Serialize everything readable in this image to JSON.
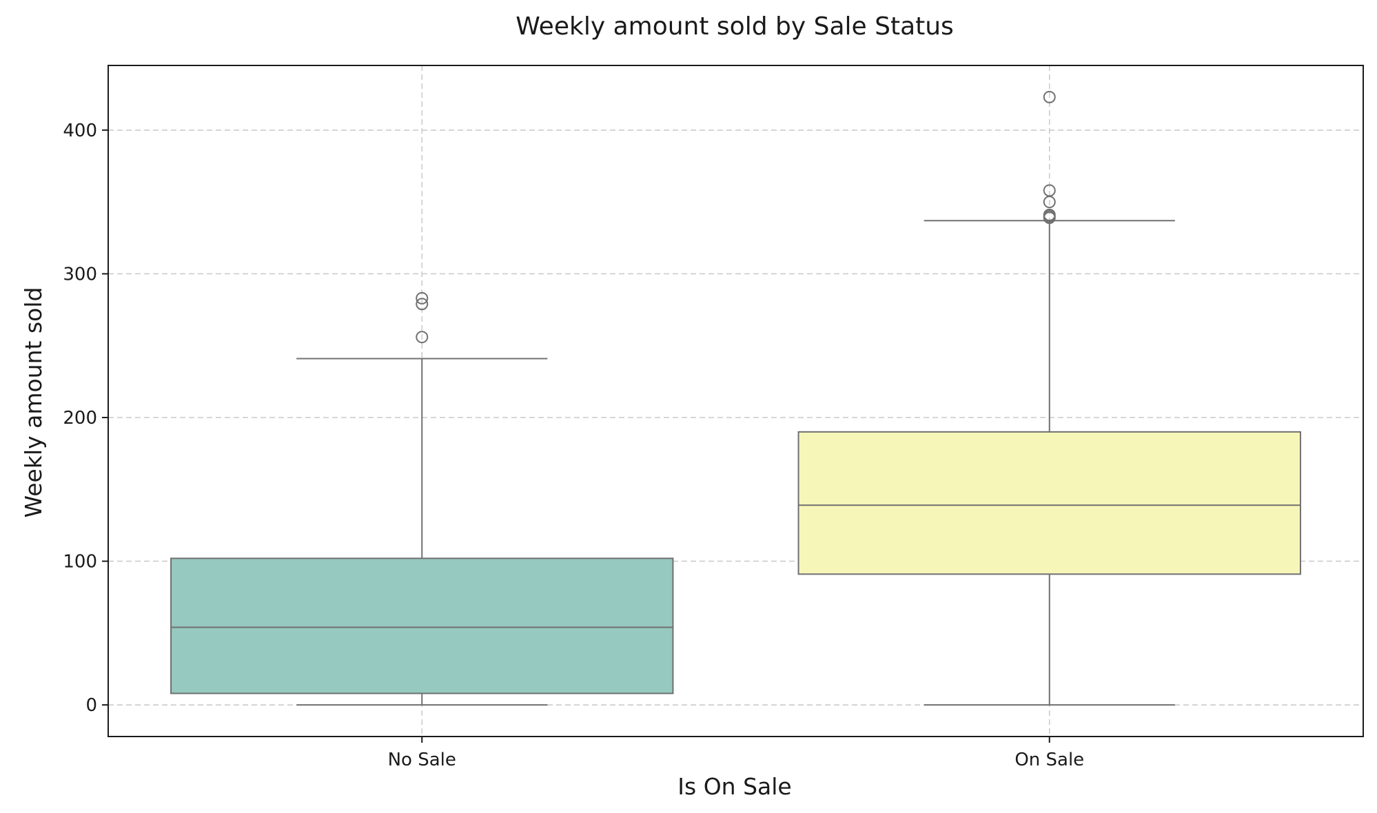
{
  "chart_data": {
    "type": "box",
    "title": "Weekly amount sold by Sale Status",
    "xlabel": "Is On Sale",
    "ylabel": "Weekly amount sold",
    "ylim": [
      -22,
      445
    ],
    "yticks": [
      0,
      100,
      200,
      300,
      400
    ],
    "grid": true,
    "categories": [
      "No Sale",
      "On Sale"
    ],
    "boxes": [
      {
        "category": "No Sale",
        "whisker_low": 0,
        "q1": 8,
        "median": 54,
        "q3": 102,
        "whisker_high": 241,
        "outliers": [
          256,
          279,
          283
        ],
        "color": "#96c9bf"
      },
      {
        "category": "On Sale",
        "whisker_low": 0,
        "q1": 91,
        "median": 139,
        "q3": 190,
        "whisker_high": 337,
        "outliers": [
          339,
          340,
          341,
          350,
          358,
          423
        ],
        "color": "#f6f6b9"
      }
    ]
  }
}
